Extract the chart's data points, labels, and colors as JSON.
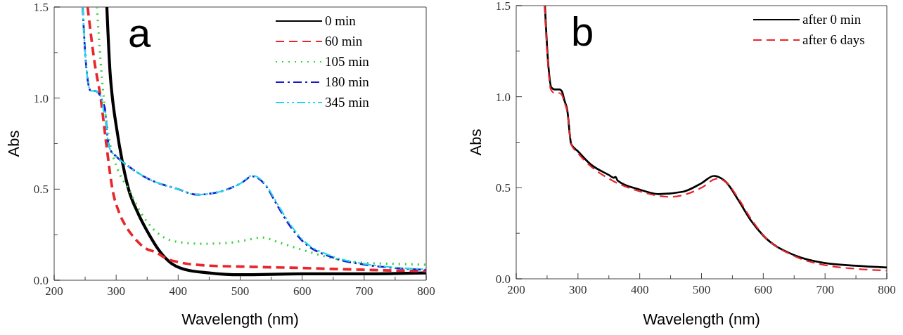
{
  "chart_data": [
    {
      "type": "line",
      "xlabel": "Wavelength (nm)",
      "ylabel": "Abs",
      "annotations": [
        "a"
      ],
      "legend": "top right",
      "grid": false,
      "xlim": [
        200,
        800
      ],
      "ylim": [
        0,
        1.5
      ],
      "xticks": [
        200,
        {
          "value": 250,
          "label": null
        },
        300,
        {
          "value": 350,
          "label": null
        },
        400,
        {
          "value": 450,
          "label": null
        },
        500,
        {
          "value": 550,
          "label": null
        },
        600,
        {
          "value": 650,
          "label": null
        },
        700,
        {
          "value": 750,
          "label": null
        },
        800
      ],
      "yticks": [
        {
          "value": 0,
          "label": "0.0"
        },
        {
          "value": 0.25,
          "label": null
        },
        {
          "value": 0.5,
          "label": "0.5"
        },
        {
          "value": 0.75,
          "label": null
        },
        {
          "value": 1,
          "label": "1.0"
        },
        {
          "value": 1.25,
          "label": null
        },
        {
          "value": 1.5,
          "label": "1.5"
        }
      ],
      "series": [
        {
          "name": "0 min",
          "color": "#000000",
          "line_style": "solid",
          "x": [
            285,
            290,
            294,
            300,
            310,
            320,
            335,
            350,
            370,
            390,
            410,
            450,
            500,
            600,
            700,
            800
          ],
          "values": [
            1.5,
            1.15,
            1.0,
            0.85,
            0.65,
            0.5,
            0.37,
            0.27,
            0.16,
            0.09,
            0.06,
            0.04,
            0.03,
            0.035,
            0.035,
            0.04
          ]
        },
        {
          "name": "60 min",
          "color": "#e8262b",
          "line_style": "dashed",
          "x": [
            254,
            265,
            275,
            284,
            294,
            305,
            315,
            330,
            345,
            366,
            380,
            400,
            450,
            500,
            600,
            700,
            800
          ],
          "values": [
            1.5,
            1.2,
            1.0,
            0.75,
            0.5,
            0.37,
            0.3,
            0.23,
            0.18,
            0.15,
            0.12,
            0.1,
            0.08,
            0.075,
            0.067,
            0.057,
            0.05
          ]
        },
        {
          "name": "105 min",
          "color": "#3fcf3f",
          "line_style": "dotted",
          "x": [
            269,
            275,
            280,
            290,
            300,
            320,
            340,
            360,
            380,
            400,
            440,
            480,
            510,
            535,
            560,
            600,
            650,
            700,
            750,
            800
          ],
          "values": [
            1.5,
            1.2,
            1.0,
            0.75,
            0.63,
            0.5,
            0.37,
            0.28,
            0.23,
            0.21,
            0.2,
            0.205,
            0.22,
            0.235,
            0.21,
            0.167,
            0.12,
            0.095,
            0.09,
            0.085
          ]
        },
        {
          "name": "180 min",
          "color": "#1a1acc",
          "line_style": "dashdot",
          "x": [
            246,
            250,
            255,
            259,
            265,
            271,
            278,
            282,
            286,
            290,
            300,
            320,
            350,
            400,
            430,
            460,
            500,
            520,
            540,
            560,
            580,
            600,
            650,
            700,
            750,
            800
          ],
          "values": [
            1.5,
            1.25,
            1.08,
            1.04,
            1.04,
            1.03,
            0.98,
            0.94,
            0.78,
            0.72,
            0.68,
            0.625,
            0.56,
            0.5,
            0.47,
            0.48,
            0.53,
            0.57,
            0.525,
            0.41,
            0.3,
            0.217,
            0.124,
            0.086,
            0.067,
            0.057
          ]
        },
        {
          "name": "345 min",
          "color": "#22d8e8",
          "line_style": "dashdotdot",
          "x": [
            246,
            250,
            255,
            259,
            265,
            271,
            278,
            280,
            282,
            286,
            290,
            300,
            320,
            350,
            400,
            430,
            460,
            500,
            520,
            540,
            560,
            580,
            600,
            650,
            700,
            750,
            800
          ],
          "values": [
            1.5,
            1.25,
            1.08,
            1.04,
            1.04,
            1.03,
            0.98,
            0.92,
            0.93,
            0.78,
            0.72,
            0.68,
            0.625,
            0.56,
            0.5,
            0.47,
            0.48,
            0.53,
            0.575,
            0.53,
            0.42,
            0.31,
            0.225,
            0.13,
            0.09,
            0.07,
            0.06
          ]
        }
      ]
    },
    {
      "type": "line",
      "xlabel": "Wavelength (nm)",
      "ylabel": "Abs",
      "annotations": [
        "b"
      ],
      "legend": "top right",
      "grid": false,
      "xlim": [
        200,
        800
      ],
      "ylim": [
        0,
        1.5
      ],
      "xticks": [
        200,
        {
          "value": 250,
          "label": null
        },
        300,
        {
          "value": 350,
          "label": null
        },
        400,
        {
          "value": 450,
          "label": null
        },
        500,
        {
          "value": 550,
          "label": null
        },
        600,
        {
          "value": 650,
          "label": null
        },
        700,
        {
          "value": 750,
          "label": null
        },
        800
      ],
      "yticks": [
        {
          "value": 0,
          "label": "0.0"
        },
        {
          "value": 0.25,
          "label": null
        },
        {
          "value": 0.5,
          "label": "0.5"
        },
        {
          "value": 0.75,
          "label": null
        },
        {
          "value": 1,
          "label": "1.0"
        },
        {
          "value": 1.25,
          "label": null
        },
        {
          "value": 1.5,
          "label": "1.5"
        }
      ],
      "series": [
        {
          "name": "after 0 min",
          "color": "#000000",
          "line_style": "solid",
          "x": [
            246.5,
            251,
            257,
            262,
            270,
            274,
            278,
            282.5,
            289,
            300,
            320,
            350,
            358,
            361,
            364,
            400,
            430,
            470,
            500,
            520,
            540,
            560,
            580,
            600,
            650,
            700,
            750,
            800
          ],
          "values": [
            1.5,
            1.22,
            1.05,
            1.04,
            1.04,
            1.03,
            0.98,
            0.93,
            0.74,
            0.7,
            0.63,
            0.57,
            0.555,
            0.56,
            0.54,
            0.49,
            0.465,
            0.478,
            0.525,
            0.565,
            0.53,
            0.43,
            0.32,
            0.237,
            0.13,
            0.086,
            0.072,
            0.062
          ]
        },
        {
          "name": "after 6 days",
          "color": "#e8262b",
          "line_style": "dashed",
          "x": [
            246,
            251,
            256,
            262,
            270,
            274,
            278,
            282.5,
            289,
            300,
            320,
            350,
            400,
            450,
            480,
            500,
            525,
            540,
            560,
            580,
            600,
            650,
            700,
            750,
            800
          ],
          "values": [
            1.5,
            1.2,
            1.04,
            1.02,
            1.02,
            1.01,
            0.97,
            0.92,
            0.74,
            0.69,
            0.62,
            0.55,
            0.48,
            0.45,
            0.47,
            0.5,
            0.55,
            0.53,
            0.44,
            0.33,
            0.24,
            0.125,
            0.075,
            0.055,
            0.045
          ]
        }
      ]
    }
  ]
}
